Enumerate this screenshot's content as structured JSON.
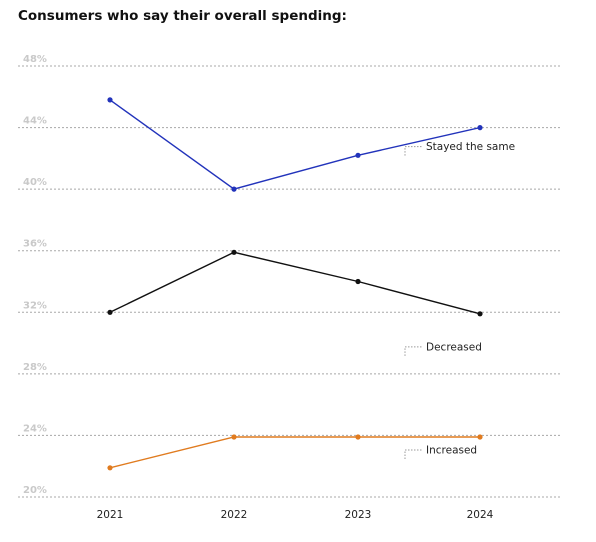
{
  "chart_data": {
    "type": "line",
    "title": "Consumers who say their overall spending:",
    "xlabel": "",
    "ylabel": "",
    "categories": [
      "2021",
      "2022",
      "2023",
      "2024"
    ],
    "y_ticks": [
      "20%",
      "24%",
      "28%",
      "32%",
      "36%",
      "40%",
      "44%",
      "48%"
    ],
    "ylim": [
      20,
      48
    ],
    "grid": true,
    "series": [
      {
        "name": "Stayed the same",
        "values": [
          45.8,
          40.0,
          42.2,
          44.0
        ],
        "color": "#2233bb"
      },
      {
        "name": "Decreased",
        "values": [
          32.0,
          35.9,
          34.0,
          31.9
        ],
        "color": "#111111"
      },
      {
        "name": "Increased",
        "values": [
          21.9,
          23.9,
          23.9,
          23.9
        ],
        "color": "#e07b1f"
      }
    ]
  }
}
